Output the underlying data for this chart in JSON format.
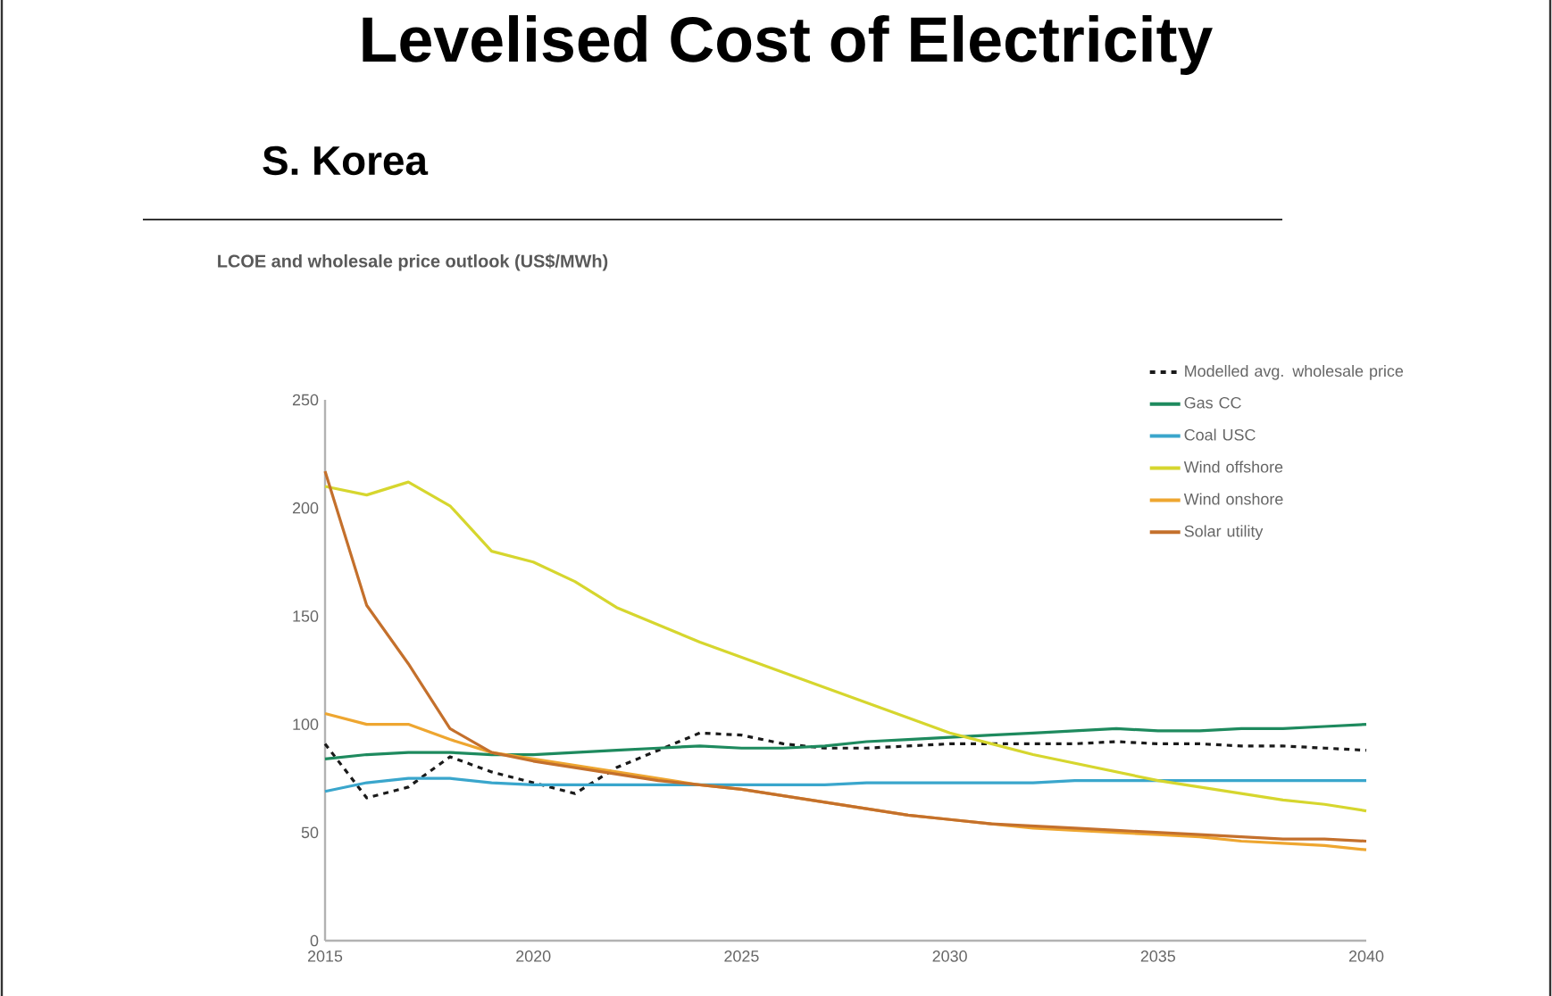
{
  "chart_data": {
    "type": "line",
    "title": "Levelised Cost of Electricity",
    "subtitle": "S. Korea",
    "annotations": [
      "LCOE and wholesale price outlook (US$/MWh)"
    ],
    "x": [
      2015,
      2016,
      2017,
      2018,
      2019,
      2020,
      2021,
      2022,
      2023,
      2024,
      2025,
      2026,
      2027,
      2028,
      2029,
      2030,
      2031,
      2032,
      2033,
      2034,
      2035,
      2036,
      2037,
      2038,
      2039,
      2040
    ],
    "xlim": [
      2015,
      2040
    ],
    "xticks": [
      2015,
      2020,
      2025,
      2030,
      2035,
      2040
    ],
    "ylim": [
      0,
      250
    ],
    "yticks": [
      0,
      50,
      100,
      150,
      200,
      250
    ],
    "legend": "top right",
    "marker": "none",
    "series": [
      {
        "name": "Modelled avg. wholesale price",
        "color": "#1a1a1a",
        "line_style": "dashed",
        "values": [
          91,
          66,
          71,
          85,
          78,
          73,
          68,
          80,
          88,
          96,
          95,
          91,
          89,
          89,
          90,
          91,
          91,
          91,
          91,
          92,
          91,
          91,
          90,
          90,
          89,
          88
        ]
      },
      {
        "name": "Gas CC",
        "color": "#1e8a5e",
        "line_style": "solid",
        "values": [
          84,
          86,
          87,
          87,
          86,
          86,
          87,
          88,
          89,
          90,
          89,
          89,
          90,
          92,
          93,
          94,
          95,
          96,
          97,
          98,
          97,
          97,
          98,
          98,
          99,
          100
        ]
      },
      {
        "name": "Coal USC",
        "color": "#3aa6cc",
        "line_style": "solid",
        "values": [
          69,
          73,
          75,
          75,
          73,
          72,
          72,
          72,
          72,
          72,
          72,
          72,
          72,
          73,
          73,
          73,
          73,
          73,
          74,
          74,
          74,
          74,
          74,
          74,
          74,
          74
        ]
      },
      {
        "name": "Wind offshore",
        "color": "#d6d62e",
        "line_style": "solid",
        "values": [
          210,
          206,
          212,
          201,
          180,
          175,
          166,
          154,
          146,
          138,
          131,
          124,
          117,
          110,
          103,
          96,
          91,
          86,
          82,
          78,
          74,
          71,
          68,
          65,
          63,
          60
        ]
      },
      {
        "name": "Wind onshore",
        "color": "#eea630",
        "line_style": "solid",
        "values": [
          105,
          100,
          100,
          93,
          87,
          84,
          81,
          78,
          75,
          72,
          70,
          67,
          64,
          61,
          58,
          56,
          54,
          52,
          51,
          50,
          49,
          48,
          46,
          45,
          44,
          42
        ]
      },
      {
        "name": "Solar utility",
        "color": "#c4702c",
        "line_style": "solid",
        "values": [
          217,
          155,
          128,
          98,
          87,
          83,
          80,
          77,
          74,
          72,
          70,
          67,
          64,
          61,
          58,
          56,
          54,
          53,
          52,
          51,
          50,
          49,
          48,
          47,
          47,
          46
        ]
      }
    ]
  }
}
